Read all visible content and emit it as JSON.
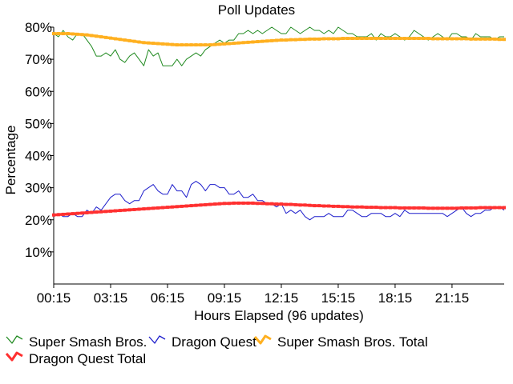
{
  "chart_data": {
    "type": "line",
    "title": "Poll Updates",
    "xlabel": "Hours Elapsed (96 updates)",
    "ylabel": "Percentage",
    "ylim": [
      0,
      80
    ],
    "yticks": [
      10,
      20,
      30,
      40,
      50,
      60,
      70,
      80
    ],
    "ytick_labels": [
      "10%",
      "20%",
      "30%",
      "40%",
      "50%",
      "60%",
      "70%",
      "80%"
    ],
    "xticks": [
      0,
      12,
      24,
      36,
      48,
      60,
      72,
      84
    ],
    "xtick_labels": [
      "00:15",
      "03:15",
      "06:15",
      "09:15",
      "12:15",
      "15:15",
      "18:15",
      "21:15"
    ],
    "xlim": [
      0,
      95
    ],
    "grid": false,
    "legend": "bottom",
    "series": [
      {
        "name": "Super Smash Bros.",
        "color": "#228b22",
        "values": [
          78,
          77,
          79,
          77,
          76,
          78,
          78,
          76,
          74,
          71,
          71,
          72,
          71,
          73,
          70,
          69,
          71,
          72,
          70,
          68,
          73,
          71,
          72,
          68,
          68,
          68,
          70,
          68,
          70,
          71,
          72,
          71,
          73,
          74,
          75,
          76,
          75,
          76,
          76,
          78,
          78,
          79,
          78,
          79,
          78,
          79,
          80,
          79,
          78,
          78,
          80,
          79,
          78,
          79,
          80,
          79,
          79,
          78,
          79,
          78,
          80,
          79,
          78,
          78,
          77,
          77,
          77,
          78,
          76,
          78,
          77,
          77,
          78,
          77,
          76,
          77,
          79,
          78,
          77,
          76,
          77,
          78,
          77,
          76,
          78,
          78,
          77,
          77,
          76,
          78,
          77,
          77,
          77,
          76,
          77,
          77
        ]
      },
      {
        "name": "Dragon Quest",
        "color": "#1f1fcc",
        "values": [
          21,
          22,
          21,
          21,
          22,
          21,
          21,
          23,
          22,
          24,
          23,
          25,
          27,
          28,
          28,
          26,
          25,
          26,
          26,
          29,
          30,
          31,
          29,
          28,
          28,
          31,
          29,
          29,
          27,
          31,
          32,
          31,
          29,
          31,
          31,
          30,
          30,
          28,
          28,
          29,
          27,
          27,
          28,
          26,
          26,
          25,
          25,
          24,
          25,
          22,
          23,
          22,
          23,
          21,
          20,
          21,
          21,
          21,
          22,
          21,
          21,
          21,
          23,
          23,
          22,
          21,
          21,
          22,
          22,
          22,
          21,
          21,
          22,
          21,
          23,
          22,
          22,
          22,
          22,
          22,
          22,
          22,
          22,
          21,
          22,
          23,
          24,
          22,
          21,
          22,
          22,
          23,
          23,
          24,
          24,
          23
        ]
      },
      {
        "name": "Super Smash Bros. Total",
        "color": "#ffb020",
        "values": [
          78,
          78,
          78,
          78,
          77.9,
          77.8,
          77.7,
          77.6,
          77.4,
          77.2,
          77,
          76.8,
          76.6,
          76.4,
          76.2,
          76,
          75.8,
          75.6,
          75.4,
          75.2,
          75.1,
          75,
          74.9,
          74.8,
          74.7,
          74.6,
          74.5,
          74.5,
          74.5,
          74.5,
          74.5,
          74.5,
          74.5,
          74.5,
          74.6,
          74.7,
          74.8,
          74.9,
          75,
          75.1,
          75.2,
          75.3,
          75.4,
          75.5,
          75.6,
          75.7,
          75.8,
          75.9,
          76,
          76,
          76.1,
          76.1,
          76.2,
          76.2,
          76.3,
          76.3,
          76.3,
          76.4,
          76.4,
          76.4,
          76.4,
          76.5,
          76.5,
          76.5,
          76.5,
          76.5,
          76.5,
          76.5,
          76.5,
          76.5,
          76.5,
          76.5,
          76.5,
          76.5,
          76.5,
          76.5,
          76.5,
          76.5,
          76.5,
          76.5,
          76.4,
          76.4,
          76.4,
          76.4,
          76.4,
          76.4,
          76.4,
          76.4,
          76.3,
          76.3,
          76.3,
          76.3,
          76.3,
          76.3,
          76.2,
          76.2
        ]
      },
      {
        "name": "Dragon Quest Total",
        "color": "#ff3030",
        "values": [
          21.5,
          21.6,
          21.7,
          21.8,
          21.9,
          22,
          22.1,
          22.2,
          22.3,
          22.4,
          22.5,
          22.6,
          22.7,
          22.8,
          22.9,
          23,
          23.1,
          23.2,
          23.3,
          23.4,
          23.5,
          23.6,
          23.7,
          23.8,
          23.9,
          24,
          24.1,
          24.2,
          24.3,
          24.4,
          24.5,
          24.6,
          24.7,
          24.8,
          24.9,
          25,
          25.1,
          25.1,
          25.2,
          25.2,
          25.2,
          25.2,
          25.2,
          25.1,
          25.1,
          25,
          25,
          24.9,
          24.9,
          24.8,
          24.8,
          24.7,
          24.6,
          24.6,
          24.5,
          24.4,
          24.4,
          24.3,
          24.3,
          24.2,
          24.2,
          24.1,
          24.1,
          24,
          24,
          24,
          23.9,
          23.9,
          23.9,
          23.8,
          23.8,
          23.8,
          23.8,
          23.7,
          23.7,
          23.7,
          23.7,
          23.7,
          23.7,
          23.6,
          23.6,
          23.6,
          23.6,
          23.6,
          23.6,
          23.6,
          23.7,
          23.7,
          23.7,
          23.7,
          23.8,
          23.8,
          23.8,
          23.8,
          23.8,
          23.8
        ]
      }
    ]
  }
}
